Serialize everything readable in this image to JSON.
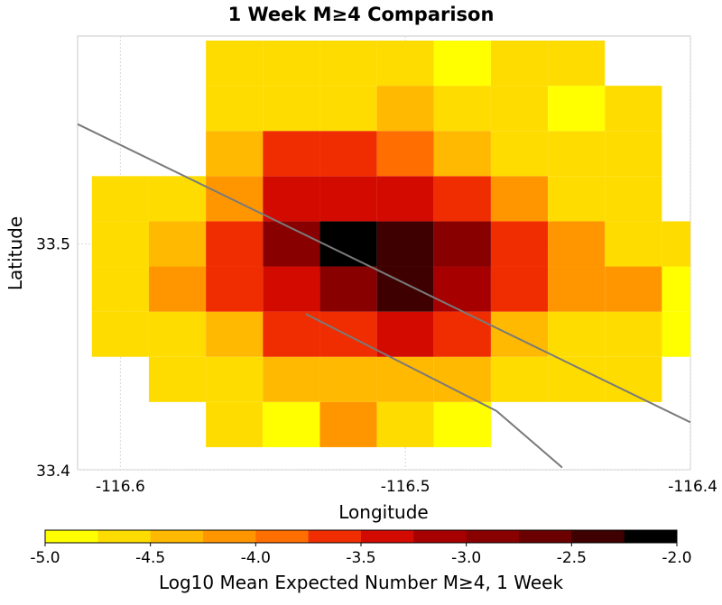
{
  "chart_data": {
    "type": "heatmap",
    "title": "1 Week M≥4 Comparison",
    "xlabel": "Longitude",
    "ylabel": "Latitude",
    "xlim": [
      -116.615,
      -116.4
    ],
    "ylim": [
      33.4,
      33.592
    ],
    "x_ticks": [
      {
        "value": -116.6,
        "label": "-116.6"
      },
      {
        "value": -116.5,
        "label": "-116.5"
      },
      {
        "value": -116.4,
        "label": "-116.4"
      }
    ],
    "y_ticks": [
      {
        "value": 33.4,
        "label": "33.4"
      },
      {
        "value": 33.5,
        "label": "33.5"
      }
    ],
    "grid": true,
    "cell_size": 0.02,
    "lon_centers": [
      -116.6,
      -116.58,
      -116.56,
      -116.54,
      -116.52,
      -116.5,
      -116.48,
      -116.46,
      -116.44,
      -116.42,
      -116.4
    ],
    "lat_centers": [
      33.42,
      33.44,
      33.46,
      33.48,
      33.5,
      33.52,
      33.54,
      33.56,
      33.58
    ],
    "values": [
      [
        null,
        null,
        -4.75,
        -4.85,
        -4.25,
        -4.65,
        -4.85,
        null,
        null,
        null,
        null
      ],
      [
        null,
        -4.65,
        -4.65,
        -4.35,
        -4.35,
        -4.35,
        -4.35,
        -4.65,
        -4.65,
        -4.65,
        null
      ],
      [
        -4.65,
        -4.65,
        -4.35,
        -3.65,
        -3.65,
        -3.35,
        -3.65,
        -4.35,
        -4.55,
        -4.65,
        -4.85
      ],
      [
        -4.55,
        -4.05,
        -3.65,
        -3.35,
        -2.85,
        -2.45,
        -3.15,
        -3.75,
        -4.05,
        -4.05,
        -4.85
      ],
      [
        -4.55,
        -4.35,
        -3.65,
        -2.85,
        -2.05,
        -2.35,
        -2.95,
        -3.75,
        -4.25,
        -4.65,
        -4.65
      ],
      [
        -4.65,
        -4.65,
        -4.25,
        -3.35,
        -3.35,
        -3.35,
        -3.65,
        -4.05,
        -4.65,
        -4.55,
        null
      ],
      [
        null,
        null,
        -4.35,
        -3.65,
        -3.65,
        -3.95,
        -4.35,
        -4.65,
        -4.65,
        -4.55,
        null
      ],
      [
        null,
        null,
        -4.65,
        -4.65,
        -4.65,
        -4.35,
        -4.55,
        -4.65,
        -4.85,
        -4.65,
        null
      ],
      [
        null,
        null,
        -4.65,
        -4.65,
        -4.65,
        -4.65,
        -4.85,
        -4.65,
        -4.65,
        null,
        null
      ]
    ],
    "fault_traces": [
      [
        [
          -116.615,
          33.553
        ],
        [
          -116.4,
          33.421
        ]
      ],
      [
        [
          -116.535,
          33.469
        ],
        [
          -116.468,
          33.426
        ],
        [
          -116.445,
          33.401
        ]
      ]
    ],
    "colorbar": {
      "label": "Log10 Mean Expected Number M≥4, 1 Week",
      "min": -5.0,
      "max": -2.0,
      "colors": [
        "#ffff00",
        "#ffdc00",
        "#ffb900",
        "#ff9600",
        "#ff6e00",
        "#f02d00",
        "#d20a00",
        "#a60000",
        "#880000",
        "#6a0000",
        "#3e0000",
        "#000000"
      ],
      "ticks": [
        {
          "value": -5.0,
          "label": "-5.0"
        },
        {
          "value": -4.5,
          "label": "-4.5"
        },
        {
          "value": -4.0,
          "label": "-4.0"
        },
        {
          "value": -3.5,
          "label": "-3.5"
        },
        {
          "value": -3.0,
          "label": "-3.0"
        },
        {
          "value": -2.5,
          "label": "-2.5"
        },
        {
          "value": -2.0,
          "label": "-2.0"
        }
      ]
    }
  }
}
